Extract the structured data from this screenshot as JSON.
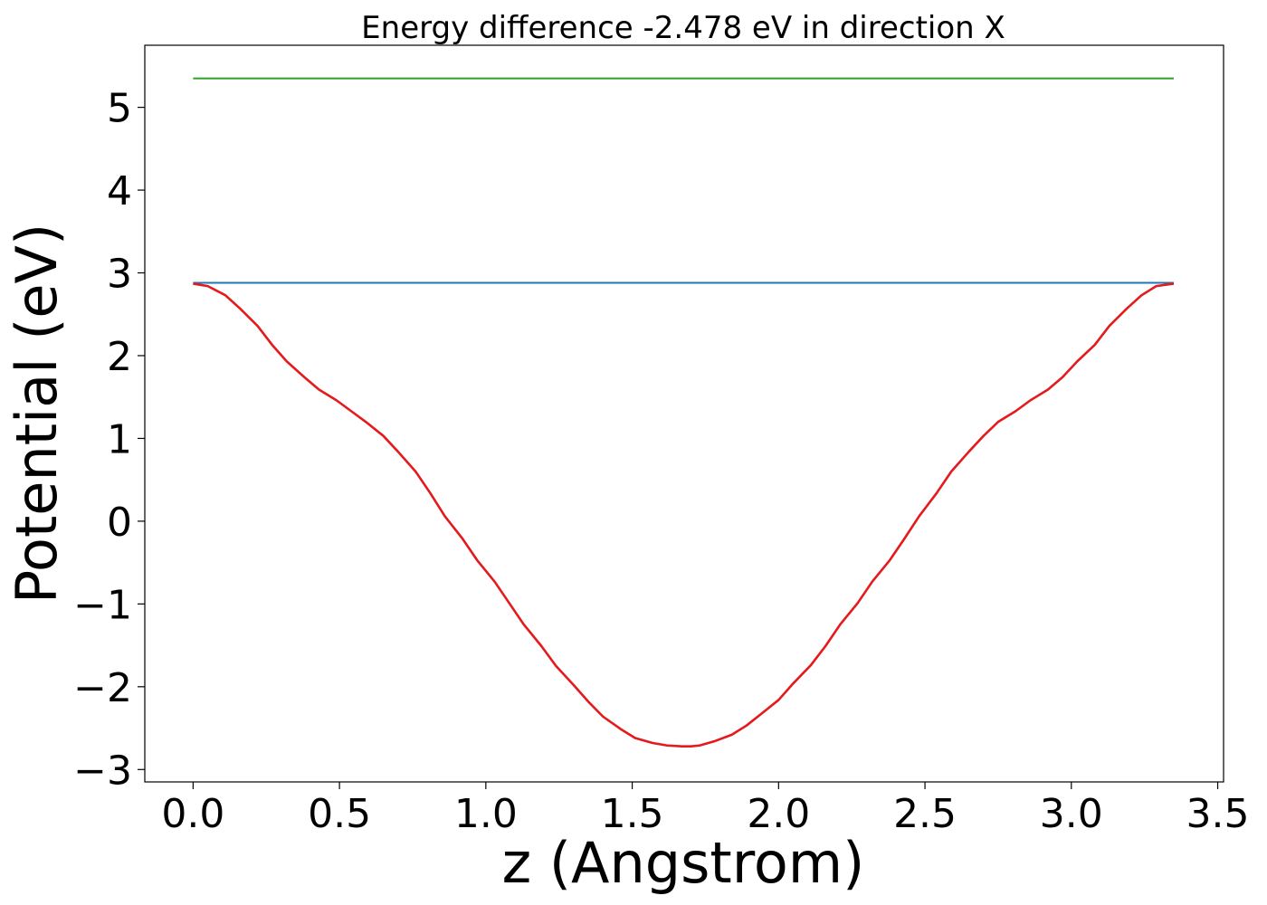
{
  "chart_data": {
    "type": "line",
    "title": "Energy difference -2.478 eV in direction X",
    "xlabel": "z (Angstrom)",
    "ylabel": "Potential (eV)",
    "xlim": [
      -0.165,
      3.52
    ],
    "ylim": [
      -3.15,
      5.75
    ],
    "xticks": [
      0.0,
      0.5,
      1.0,
      1.5,
      2.0,
      2.5,
      3.0,
      3.5
    ],
    "xtick_labels": [
      "0.0",
      "0.5",
      "1.0",
      "1.5",
      "2.0",
      "2.5",
      "3.0",
      "3.5"
    ],
    "yticks": [
      -3,
      -2,
      -1,
      0,
      1,
      2,
      3,
      4,
      5
    ],
    "ytick_labels": [
      "−3",
      "−2",
      "−1",
      "0",
      "1",
      "2",
      "3",
      "4",
      "5"
    ],
    "grid": false,
    "series": [
      {
        "color": "#2ca02c",
        "x": [
          0.0,
          3.35
        ],
        "y": [
          5.35,
          5.35
        ]
      },
      {
        "color": "#1f77b4",
        "x": [
          0.0,
          3.35
        ],
        "y": [
          2.88,
          2.88
        ]
      },
      {
        "color": "#e41a1c",
        "x": [
          0.0,
          0.05,
          0.11,
          0.16,
          0.22,
          0.27,
          0.32,
          0.38,
          0.43,
          0.49,
          0.54,
          0.59,
          0.65,
          0.7,
          0.76,
          0.81,
          0.86,
          0.92,
          0.97,
          1.03,
          1.08,
          1.13,
          1.19,
          1.24,
          1.3,
          1.35,
          1.4,
          1.46,
          1.51,
          1.57,
          1.62,
          1.67,
          1.7,
          1.73,
          1.78,
          1.84,
          1.89,
          1.94,
          2.0,
          2.05,
          2.11,
          2.16,
          2.21,
          2.27,
          2.32,
          2.38,
          2.43,
          2.48,
          2.54,
          2.59,
          2.65,
          2.7,
          2.75,
          2.81,
          2.86,
          2.92,
          2.97,
          3.02,
          3.08,
          3.13,
          3.19,
          3.24,
          3.29,
          3.35
        ],
        "y": [
          2.87,
          2.84,
          2.73,
          2.57,
          2.36,
          2.13,
          1.93,
          1.74,
          1.59,
          1.46,
          1.33,
          1.2,
          1.03,
          0.84,
          0.6,
          0.34,
          0.06,
          -0.21,
          -0.47,
          -0.73,
          -0.99,
          -1.25,
          -1.51,
          -1.75,
          -1.98,
          -2.18,
          -2.36,
          -2.51,
          -2.62,
          -2.68,
          -2.71,
          -2.72,
          -2.72,
          -2.71,
          -2.66,
          -2.58,
          -2.47,
          -2.33,
          -2.16,
          -1.96,
          -1.74,
          -1.51,
          -1.25,
          -0.99,
          -0.73,
          -0.47,
          -0.21,
          0.06,
          0.34,
          0.6,
          0.84,
          1.03,
          1.2,
          1.33,
          1.46,
          1.59,
          1.74,
          1.93,
          2.13,
          2.36,
          2.57,
          2.73,
          2.84,
          2.87
        ]
      }
    ]
  }
}
